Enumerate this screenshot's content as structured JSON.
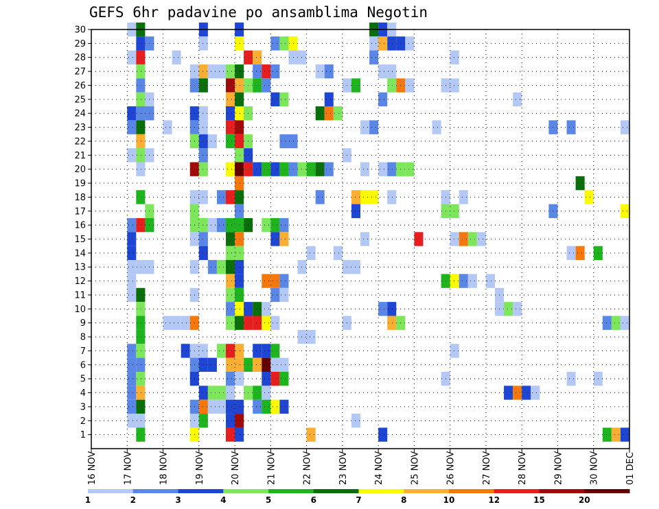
{
  "chart_data": {
    "type": "heatmap",
    "title": "GEFS 6hr padavine po ansamblima Negotin",
    "xlabel": "",
    "ylabel": "",
    "x_ticks": [
      "16 NOV",
      "17 NOV",
      "18 NOV",
      "19 NOV",
      "20 NOV",
      "21 NOV",
      "22 NOV",
      "23 NOV",
      "24 NOV",
      "25 NOV",
      "26 NOV",
      "27 NOV",
      "28 NOV",
      "29 NOV",
      "30 NOV",
      "01 DEC"
    ],
    "y_ticks": [
      1,
      2,
      3,
      4,
      5,
      6,
      7,
      8,
      9,
      10,
      11,
      12,
      13,
      14,
      15,
      16,
      17,
      18,
      19,
      20,
      21,
      22,
      23,
      24,
      25,
      26,
      27,
      28,
      29,
      30
    ],
    "ylim": [
      0,
      30
    ],
    "time_step_hours": 6,
    "grid": true,
    "colorbar": {
      "levels": [
        "1",
        "2",
        "3",
        "4",
        "5",
        "6",
        "7",
        "8",
        "10",
        "12",
        "15",
        "20"
      ],
      "colors": [
        "#b4c8f5",
        "#5a87e6",
        "#1e46d2",
        "#7ee65a",
        "#1eb41e",
        "#0a6e0a",
        "#fafa00",
        "#faaf32",
        "#f5780a",
        "#e61e1e",
        "#a00a0a",
        "#640000"
      ]
    },
    "cells": [
      [
        4,
        30,
        0
      ],
      [
        5,
        30,
        5
      ],
      [
        12,
        30,
        2
      ],
      [
        16,
        30,
        2
      ],
      [
        31,
        30,
        5
      ],
      [
        32,
        30,
        2
      ],
      [
        33,
        30,
        0
      ],
      [
        5,
        29,
        2
      ],
      [
        6,
        29,
        1
      ],
      [
        12,
        29,
        0
      ],
      [
        16,
        29,
        6
      ],
      [
        20,
        29,
        1
      ],
      [
        21,
        29,
        3
      ],
      [
        22,
        29,
        6
      ],
      [
        31,
        29,
        0
      ],
      [
        32,
        29,
        7
      ],
      [
        33,
        29,
        2
      ],
      [
        34,
        29,
        2
      ],
      [
        35,
        29,
        0
      ],
      [
        60,
        29,
        0
      ],
      [
        4,
        28,
        0
      ],
      [
        5,
        28,
        9
      ],
      [
        9,
        28,
        0
      ],
      [
        17,
        28,
        9
      ],
      [
        18,
        28,
        7
      ],
      [
        22,
        28,
        0
      ],
      [
        23,
        28,
        0
      ],
      [
        31,
        28,
        1
      ],
      [
        40,
        28,
        0
      ],
      [
        5,
        27,
        3
      ],
      [
        11,
        27,
        0
      ],
      [
        12,
        27,
        7
      ],
      [
        13,
        27,
        0
      ],
      [
        14,
        27,
        0
      ],
      [
        15,
        27,
        3
      ],
      [
        16,
        27,
        5
      ],
      [
        18,
        27,
        1
      ],
      [
        19,
        27,
        9
      ],
      [
        20,
        27,
        1
      ],
      [
        25,
        27,
        0
      ],
      [
        26,
        27,
        1
      ],
      [
        32,
        27,
        0
      ],
      [
        33,
        27,
        0
      ],
      [
        5,
        26,
        1
      ],
      [
        11,
        26,
        1
      ],
      [
        12,
        26,
        5
      ],
      [
        15,
        26,
        10
      ],
      [
        16,
        26,
        7
      ],
      [
        17,
        26,
        3
      ],
      [
        18,
        26,
        4
      ],
      [
        19,
        26,
        1
      ],
      [
        28,
        26,
        0
      ],
      [
        29,
        26,
        4
      ],
      [
        33,
        26,
        3
      ],
      [
        34,
        26,
        8
      ],
      [
        35,
        26,
        0
      ],
      [
        39,
        26,
        0
      ],
      [
        40,
        26,
        0
      ],
      [
        61,
        26,
        0
      ],
      [
        62,
        26,
        1
      ],
      [
        63,
        26,
        0
      ],
      [
        5,
        25,
        3
      ],
      [
        6,
        25,
        0
      ],
      [
        15,
        25,
        7
      ],
      [
        16,
        25,
        5
      ],
      [
        20,
        25,
        2
      ],
      [
        21,
        25,
        3
      ],
      [
        26,
        25,
        2
      ],
      [
        32,
        25,
        1
      ],
      [
        47,
        25,
        0
      ],
      [
        4,
        24,
        2
      ],
      [
        5,
        24,
        1
      ],
      [
        6,
        24,
        1
      ],
      [
        11,
        24,
        2
      ],
      [
        12,
        24,
        0
      ],
      [
        15,
        24,
        2
      ],
      [
        16,
        24,
        6
      ],
      [
        17,
        24,
        3
      ],
      [
        25,
        24,
        5
      ],
      [
        26,
        24,
        8
      ],
      [
        27,
        24,
        3
      ],
      [
        4,
        23,
        1
      ],
      [
        5,
        23,
        5
      ],
      [
        8,
        23,
        0
      ],
      [
        11,
        23,
        1
      ],
      [
        12,
        23,
        0
      ],
      [
        15,
        23,
        9
      ],
      [
        16,
        23,
        10
      ],
      [
        30,
        23,
        0
      ],
      [
        31,
        23,
        1
      ],
      [
        38,
        23,
        0
      ],
      [
        51,
        23,
        1
      ],
      [
        53,
        23,
        1
      ],
      [
        59,
        23,
        0
      ],
      [
        60,
        23,
        0
      ],
      [
        62,
        23,
        4
      ],
      [
        63,
        23,
        5
      ],
      [
        5,
        22,
        7
      ],
      [
        11,
        22,
        3
      ],
      [
        12,
        22,
        2
      ],
      [
        13,
        22,
        0
      ],
      [
        15,
        22,
        4
      ],
      [
        16,
        22,
        9
      ],
      [
        17,
        22,
        3
      ],
      [
        21,
        22,
        1
      ],
      [
        22,
        22,
        1
      ],
      [
        4,
        21,
        0
      ],
      [
        5,
        21,
        3
      ],
      [
        6,
        21,
        0
      ],
      [
        12,
        21,
        1
      ],
      [
        16,
        21,
        3
      ],
      [
        17,
        21,
        2
      ],
      [
        28,
        21,
        0
      ],
      [
        5,
        20,
        0
      ],
      [
        11,
        20,
        10
      ],
      [
        12,
        20,
        3
      ],
      [
        15,
        20,
        6
      ],
      [
        16,
        20,
        11
      ],
      [
        17,
        20,
        9
      ],
      [
        18,
        20,
        2
      ],
      [
        19,
        20,
        4
      ],
      [
        20,
        20,
        2
      ],
      [
        21,
        20,
        4
      ],
      [
        22,
        20,
        1
      ],
      [
        23,
        20,
        3
      ],
      [
        24,
        20,
        4
      ],
      [
        25,
        20,
        5
      ],
      [
        26,
        20,
        1
      ],
      [
        30,
        20,
        0
      ],
      [
        32,
        20,
        0
      ],
      [
        33,
        20,
        1
      ],
      [
        34,
        20,
        3
      ],
      [
        35,
        20,
        3
      ],
      [
        16,
        19,
        8
      ],
      [
        54,
        19,
        5
      ],
      [
        5,
        18,
        4
      ],
      [
        11,
        18,
        0
      ],
      [
        12,
        18,
        0
      ],
      [
        14,
        18,
        1
      ],
      [
        15,
        18,
        9
      ],
      [
        16,
        18,
        5
      ],
      [
        25,
        18,
        1
      ],
      [
        29,
        18,
        7
      ],
      [
        30,
        18,
        6
      ],
      [
        31,
        18,
        6
      ],
      [
        33,
        18,
        0
      ],
      [
        39,
        18,
        0
      ],
      [
        41,
        18,
        0
      ],
      [
        55,
        18,
        6
      ],
      [
        6,
        17,
        3
      ],
      [
        11,
        17,
        3
      ],
      [
        16,
        17,
        1
      ],
      [
        29,
        17,
        2
      ],
      [
        39,
        17,
        3
      ],
      [
        40,
        17,
        3
      ],
      [
        51,
        17,
        1
      ],
      [
        59,
        17,
        6
      ],
      [
        60,
        17,
        10
      ],
      [
        61,
        17,
        1
      ],
      [
        4,
        16,
        1
      ],
      [
        5,
        16,
        9
      ],
      [
        6,
        16,
        4
      ],
      [
        11,
        16,
        3
      ],
      [
        12,
        16,
        3
      ],
      [
        13,
        16,
        0
      ],
      [
        14,
        16,
        1
      ],
      [
        15,
        16,
        4
      ],
      [
        16,
        16,
        4
      ],
      [
        17,
        16,
        5
      ],
      [
        19,
        16,
        3
      ],
      [
        20,
        16,
        4
      ],
      [
        21,
        16,
        1
      ],
      [
        60,
        16,
        0
      ],
      [
        4,
        15,
        2
      ],
      [
        11,
        15,
        0
      ],
      [
        12,
        15,
        1
      ],
      [
        15,
        15,
        5
      ],
      [
        16,
        15,
        8
      ],
      [
        20,
        15,
        2
      ],
      [
        21,
        15,
        7
      ],
      [
        30,
        15,
        0
      ],
      [
        36,
        15,
        9
      ],
      [
        40,
        15,
        0
      ],
      [
        41,
        15,
        8
      ],
      [
        42,
        15,
        3
      ],
      [
        43,
        15,
        0
      ],
      [
        4,
        14,
        2
      ],
      [
        12,
        14,
        2
      ],
      [
        15,
        14,
        3
      ],
      [
        16,
        14,
        3
      ],
      [
        24,
        14,
        0
      ],
      [
        27,
        14,
        0
      ],
      [
        53,
        14,
        0
      ],
      [
        54,
        14,
        8
      ],
      [
        56,
        14,
        4
      ],
      [
        4,
        13,
        0
      ],
      [
        5,
        13,
        0
      ],
      [
        6,
        13,
        0
      ],
      [
        11,
        13,
        0
      ],
      [
        13,
        13,
        1
      ],
      [
        14,
        13,
        3
      ],
      [
        15,
        13,
        5
      ],
      [
        16,
        13,
        2
      ],
      [
        23,
        13,
        0
      ],
      [
        28,
        13,
        0
      ],
      [
        29,
        13,
        0
      ],
      [
        4,
        12,
        0
      ],
      [
        15,
        12,
        7
      ],
      [
        16,
        12,
        2
      ],
      [
        19,
        12,
        8
      ],
      [
        20,
        12,
        8
      ],
      [
        21,
        12,
        1
      ],
      [
        39,
        12,
        4
      ],
      [
        40,
        12,
        6
      ],
      [
        41,
        12,
        1
      ],
      [
        42,
        12,
        0
      ],
      [
        44,
        12,
        0
      ],
      [
        4,
        11,
        0
      ],
      [
        5,
        11,
        5
      ],
      [
        11,
        11,
        0
      ],
      [
        15,
        11,
        3
      ],
      [
        16,
        11,
        4
      ],
      [
        20,
        11,
        1
      ],
      [
        21,
        11,
        0
      ],
      [
        45,
        11,
        0
      ],
      [
        5,
        10,
        3
      ],
      [
        15,
        10,
        1
      ],
      [
        16,
        10,
        6
      ],
      [
        17,
        10,
        2
      ],
      [
        18,
        10,
        5
      ],
      [
        19,
        10,
        0
      ],
      [
        32,
        10,
        1
      ],
      [
        33,
        10,
        2
      ],
      [
        45,
        10,
        0
      ],
      [
        46,
        10,
        3
      ],
      [
        47,
        10,
        0
      ],
      [
        63,
        10,
        2
      ],
      [
        5,
        9,
        4
      ],
      [
        8,
        9,
        0
      ],
      [
        9,
        9,
        0
      ],
      [
        10,
        9,
        0
      ],
      [
        11,
        9,
        8
      ],
      [
        15,
        9,
        3
      ],
      [
        16,
        9,
        5
      ],
      [
        17,
        9,
        9
      ],
      [
        18,
        9,
        9
      ],
      [
        19,
        9,
        6
      ],
      [
        20,
        9,
        0
      ],
      [
        28,
        9,
        0
      ],
      [
        33,
        9,
        7
      ],
      [
        34,
        9,
        3
      ],
      [
        57,
        9,
        1
      ],
      [
        58,
        9,
        3
      ],
      [
        59,
        9,
        0
      ],
      [
        5,
        8,
        4
      ],
      [
        23,
        8,
        0
      ],
      [
        24,
        8,
        0
      ],
      [
        4,
        7,
        1
      ],
      [
        5,
        7,
        3
      ],
      [
        10,
        7,
        2
      ],
      [
        11,
        7,
        0
      ],
      [
        12,
        7,
        0
      ],
      [
        14,
        7,
        3
      ],
      [
        15,
        7,
        9
      ],
      [
        16,
        7,
        7
      ],
      [
        18,
        7,
        2
      ],
      [
        19,
        7,
        2
      ],
      [
        20,
        7,
        4
      ],
      [
        40,
        7,
        0
      ],
      [
        4,
        6,
        1
      ],
      [
        5,
        6,
        1
      ],
      [
        11,
        6,
        1
      ],
      [
        12,
        6,
        2
      ],
      [
        13,
        6,
        2
      ],
      [
        15,
        6,
        7
      ],
      [
        16,
        6,
        7
      ],
      [
        17,
        6,
        4
      ],
      [
        18,
        6,
        7
      ],
      [
        19,
        6,
        11
      ],
      [
        20,
        6,
        0
      ],
      [
        21,
        6,
        0
      ],
      [
        4,
        5,
        1
      ],
      [
        5,
        5,
        3
      ],
      [
        11,
        5,
        2
      ],
      [
        15,
        5,
        1
      ],
      [
        16,
        5,
        0
      ],
      [
        19,
        5,
        2
      ],
      [
        20,
        5,
        9
      ],
      [
        21,
        5,
        4
      ],
      [
        39,
        5,
        0
      ],
      [
        53,
        5,
        0
      ],
      [
        56,
        5,
        0
      ],
      [
        4,
        4,
        1
      ],
      [
        5,
        4,
        7
      ],
      [
        12,
        4,
        2
      ],
      [
        13,
        4,
        3
      ],
      [
        14,
        4,
        3
      ],
      [
        15,
        4,
        0
      ],
      [
        17,
        4,
        3
      ],
      [
        18,
        4,
        4
      ],
      [
        19,
        4,
        0
      ],
      [
        46,
        4,
        2
      ],
      [
        47,
        4,
        8
      ],
      [
        48,
        4,
        2
      ],
      [
        49,
        4,
        0
      ],
      [
        4,
        3,
        1
      ],
      [
        5,
        3,
        5
      ],
      [
        11,
        3,
        1
      ],
      [
        12,
        3,
        8
      ],
      [
        13,
        3,
        0
      ],
      [
        14,
        3,
        0
      ],
      [
        15,
        3,
        2
      ],
      [
        16,
        3,
        2
      ],
      [
        18,
        3,
        1
      ],
      [
        19,
        3,
        4
      ],
      [
        20,
        3,
        6
      ],
      [
        21,
        3,
        2
      ],
      [
        4,
        2,
        0
      ],
      [
        5,
        2,
        0
      ],
      [
        11,
        2,
        0
      ],
      [
        12,
        2,
        4
      ],
      [
        15,
        2,
        2
      ],
      [
        16,
        2,
        10
      ],
      [
        29,
        2,
        0
      ],
      [
        5,
        1,
        4
      ],
      [
        11,
        1,
        6
      ],
      [
        15,
        1,
        9
      ],
      [
        16,
        1,
        2
      ],
      [
        24,
        1,
        7
      ],
      [
        32,
        1,
        2
      ],
      [
        57,
        1,
        4
      ],
      [
        58,
        1,
        7
      ],
      [
        59,
        1,
        2
      ],
      [
        60,
        1,
        4
      ],
      [
        61,
        1,
        1
      ]
    ]
  }
}
